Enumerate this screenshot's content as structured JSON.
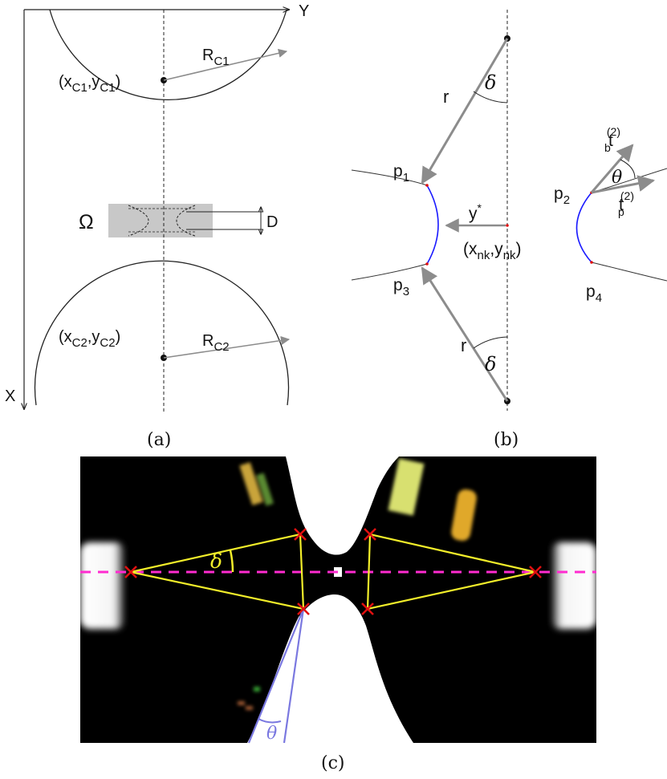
{
  "panel_a": {
    "axis_y": "Y",
    "axis_x": "X",
    "radius_1": "R",
    "radius_1_sub": "C1",
    "center_1": "(x",
    "center_1_sub": "C1",
    "center_1_mid": ",y",
    "center_1_sub2": "C1",
    "center_1_end": ")",
    "radius_2": "R",
    "radius_2_sub": "C2",
    "center_2": "(x",
    "center_2_sub": "C2",
    "center_2_mid": ",y",
    "center_2_sub2": "C2",
    "center_2_end": ")",
    "omega": "Ω",
    "gap": "D",
    "caption": "(a)"
  },
  "panel_b": {
    "radius_top": "r",
    "radius_bottom": "r",
    "angle_top": "δ",
    "angle_bottom": "δ",
    "p1": "p",
    "p1_sub": "1",
    "p3": "p",
    "p3_sub": "3",
    "p2": "p",
    "p2_sub": "2",
    "p4": "p",
    "p4_sub": "4",
    "ystar": "y",
    "ystar_sup": "*",
    "node": "(x",
    "node_sub": "nk",
    "node_mid": ",y",
    "node_sub2": "nk",
    "node_end": ")",
    "tb": "t",
    "tb_sub": "b",
    "tb_sup": "(2)",
    "tp": "t",
    "tp_sub": "p",
    "tp_sup": "(2)",
    "theta": "θ",
    "caption": "(b)"
  },
  "panel_c": {
    "delta": "δ",
    "theta": "θ",
    "caption": "(c)"
  },
  "colors": {
    "arrow_gray": "#8c8c8c",
    "meniscus_blue": "#1a1aff",
    "point_red": "#e01010",
    "overlay_yellow": "#f2ee2a",
    "axis_magenta": "#ff2bd0",
    "theta_violet": "#7a78e0",
    "region_gray": "#c8c8c8"
  }
}
